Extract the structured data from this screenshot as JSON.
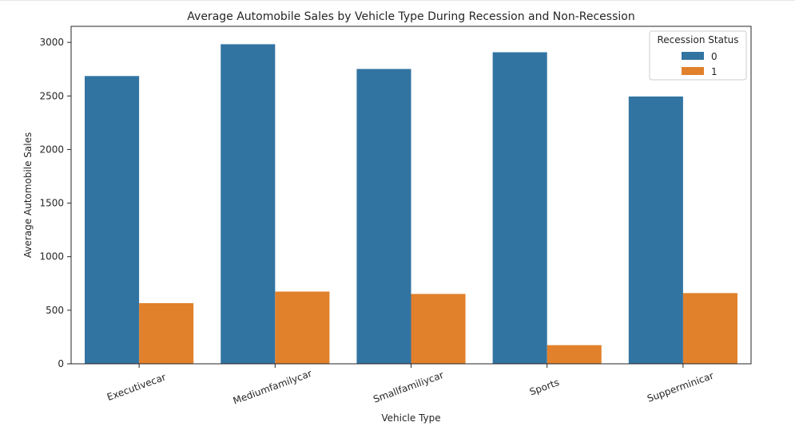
{
  "chart_data": {
    "type": "bar",
    "title": "Average Automobile Sales by Vehicle Type During Recession and Non-Recession",
    "xlabel": "Vehicle Type",
    "ylabel": "Average Automobile Sales",
    "categories": [
      "Executivecar",
      "Mediumfamilycar",
      "Smallfamiliycar",
      "Sports",
      "Supperminicar"
    ],
    "series": [
      {
        "name": "0",
        "color": "#3274a1",
        "values": [
          2686,
          2983,
          2752,
          2908,
          2495
        ]
      },
      {
        "name": "1",
        "color": "#e1812c",
        "values": [
          566,
          674,
          652,
          174,
          660
        ]
      }
    ],
    "yticks": [
      "0",
      "500",
      "1000",
      "1500",
      "2000",
      "2500",
      "3000"
    ],
    "ylim": [
      0,
      3150
    ],
    "legend": {
      "title": "Recession Status",
      "placement": "top-right"
    },
    "grid": false,
    "xtick_rotation": "rotated about 20 degrees"
  }
}
